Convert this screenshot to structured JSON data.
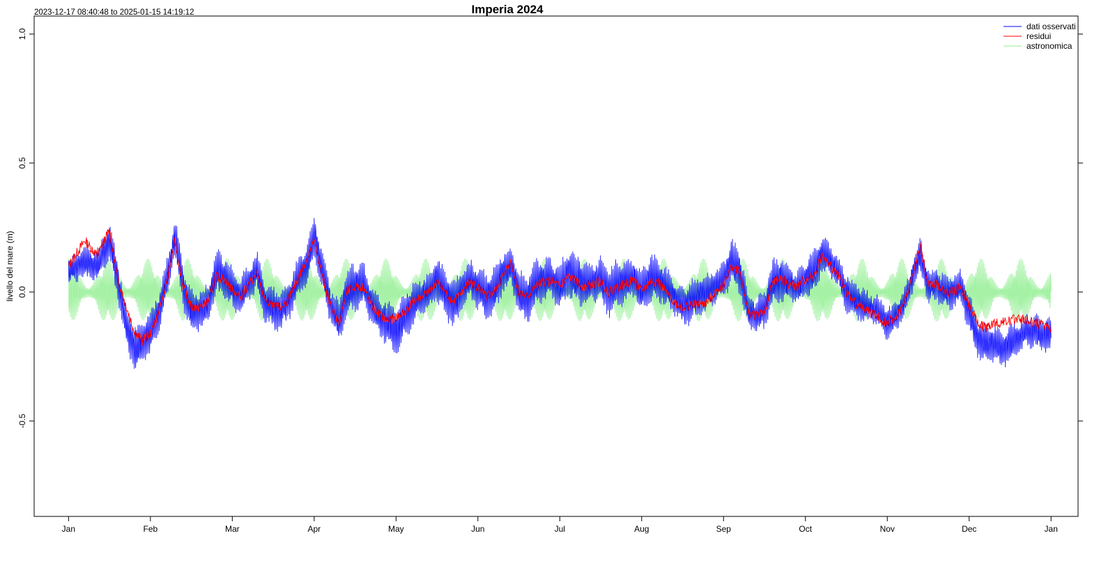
{
  "chart_data": {
    "type": "line",
    "title": "Imperia 2024",
    "subtitle": "2023-12-17 08:40:48 to 2025-01-15 14:19:12",
    "xlabel": "",
    "ylabel": "livello del mare (m)",
    "ylim": [
      -0.87,
      1.07
    ],
    "xlim": [
      -0.42,
      12.33
    ],
    "yticks": [
      -0.5,
      0.0,
      0.5,
      1.0
    ],
    "ytick_labels": [
      "-0.5",
      "0.0",
      "0.5",
      "1.0"
    ],
    "xticks": [
      0,
      1,
      2,
      3,
      4,
      5,
      6,
      7,
      8,
      9,
      10,
      11,
      12
    ],
    "xtick_labels": [
      "Jan",
      "Feb",
      "Mar",
      "Apr",
      "May",
      "Jun",
      "Jul",
      "Aug",
      "Sep",
      "Oct",
      "Nov",
      "Dec",
      "Jan"
    ],
    "x_unit": "months since 2024-01-01",
    "grid": false,
    "legend_position": "top-right",
    "series": [
      {
        "name": "dati osservati",
        "color": "#0000ff",
        "x": [
          0.0,
          0.2,
          0.35,
          0.5,
          0.6,
          0.7,
          0.8,
          0.9,
          1.0,
          1.1,
          1.2,
          1.3,
          1.4,
          1.5,
          1.6,
          1.7,
          1.8,
          1.9,
          2.0,
          2.1,
          2.2,
          2.3,
          2.4,
          2.5,
          2.6,
          2.7,
          2.8,
          2.9,
          3.0,
          3.1,
          3.2,
          3.3,
          3.4,
          3.5,
          3.6,
          3.7,
          3.8,
          3.9,
          4.0,
          4.1,
          4.2,
          4.3,
          4.4,
          4.5,
          4.6,
          4.7,
          4.8,
          4.9,
          5.0,
          5.1,
          5.2,
          5.3,
          5.4,
          5.5,
          5.6,
          5.7,
          5.8,
          5.9,
          6.0,
          6.1,
          6.2,
          6.3,
          6.4,
          6.5,
          6.6,
          6.7,
          6.8,
          6.9,
          7.0,
          7.1,
          7.2,
          7.3,
          7.4,
          7.5,
          7.6,
          7.7,
          7.8,
          7.9,
          8.0,
          8.1,
          8.2,
          8.3,
          8.4,
          8.5,
          8.6,
          8.7,
          8.8,
          8.9,
          9.0,
          9.1,
          9.2,
          9.3,
          9.4,
          9.5,
          9.6,
          9.7,
          9.8,
          9.9,
          10.0,
          10.1,
          10.2,
          10.3,
          10.4,
          10.5,
          10.6,
          10.7,
          10.8,
          10.9,
          11.0,
          11.1,
          11.2,
          11.3,
          11.4,
          11.5,
          11.6,
          11.7,
          11.8,
          11.9,
          12.0
        ],
        "y": [
          0.08,
          0.12,
          0.1,
          0.2,
          0.05,
          -0.12,
          -0.22,
          -0.2,
          -0.16,
          -0.08,
          0.05,
          0.22,
          0.02,
          -0.08,
          -0.07,
          -0.05,
          0.08,
          0.06,
          0.02,
          -0.02,
          0.04,
          0.08,
          -0.04,
          -0.06,
          -0.07,
          -0.03,
          0.05,
          0.1,
          0.22,
          0.08,
          -0.05,
          -0.12,
          0.0,
          0.02,
          0.03,
          -0.05,
          -0.1,
          -0.12,
          -0.15,
          -0.1,
          -0.05,
          -0.02,
          0.0,
          0.05,
          0.0,
          -0.05,
          0.0,
          0.05,
          0.02,
          -0.02,
          0.0,
          0.08,
          0.1,
          0.0,
          -0.03,
          0.03,
          0.05,
          0.05,
          0.02,
          0.08,
          0.05,
          0.03,
          0.04,
          0.05,
          0.0,
          0.03,
          0.04,
          0.06,
          0.0,
          0.05,
          0.05,
          0.02,
          -0.02,
          -0.05,
          -0.04,
          -0.02,
          0.0,
          0.02,
          0.05,
          0.12,
          0.08,
          -0.08,
          -0.09,
          -0.07,
          0.04,
          0.05,
          0.03,
          0.02,
          0.05,
          0.08,
          0.15,
          0.12,
          0.08,
          0.0,
          -0.03,
          -0.05,
          -0.06,
          -0.08,
          -0.12,
          -0.1,
          -0.05,
          0.05,
          0.15,
          0.02,
          0.03,
          0.0,
          0.0,
          0.02,
          -0.08,
          -0.18,
          -0.2,
          -0.2,
          -0.22,
          -0.2,
          -0.18,
          -0.15,
          -0.15,
          -0.17,
          -0.16
        ],
        "amplitude": [
          0.05,
          0.06,
          0.06,
          0.07,
          0.07,
          0.07,
          0.08,
          0.08,
          0.08,
          0.07,
          0.07,
          0.07,
          0.08,
          0.08,
          0.07,
          0.07,
          0.08,
          0.08,
          0.08,
          0.07,
          0.07,
          0.07,
          0.08,
          0.08,
          0.07,
          0.07,
          0.07,
          0.08,
          0.08,
          0.07,
          0.07,
          0.08,
          0.09,
          0.09,
          0.08,
          0.07,
          0.07,
          0.08,
          0.09,
          0.09,
          0.08,
          0.07,
          0.07,
          0.08,
          0.09,
          0.09,
          0.08,
          0.07,
          0.08,
          0.09,
          0.09,
          0.08,
          0.07,
          0.08,
          0.09,
          0.09,
          0.08,
          0.07,
          0.08,
          0.09,
          0.09,
          0.08,
          0.07,
          0.08,
          0.09,
          0.09,
          0.08,
          0.07,
          0.08,
          0.09,
          0.08,
          0.07,
          0.06,
          0.07,
          0.08,
          0.08,
          0.07,
          0.06,
          0.07,
          0.08,
          0.08,
          0.07,
          0.06,
          0.07,
          0.08,
          0.08,
          0.07,
          0.06,
          0.07,
          0.08,
          0.07,
          0.06,
          0.06,
          0.07,
          0.07,
          0.06,
          0.05,
          0.06,
          0.06,
          0.05,
          0.05,
          0.05,
          0.06,
          0.06,
          0.06,
          0.06,
          0.06,
          0.06,
          0.07,
          0.07,
          0.07,
          0.07,
          0.07,
          0.07,
          0.06,
          0.06,
          0.06,
          0.06,
          0.06
        ]
      },
      {
        "name": "residui",
        "color": "#ff0000",
        "x": [
          0.0,
          0.2,
          0.35,
          0.5,
          0.6,
          0.7,
          0.8,
          0.9,
          1.0,
          1.1,
          1.2,
          1.3,
          1.4,
          1.5,
          1.6,
          1.7,
          1.8,
          1.9,
          2.0,
          2.1,
          2.2,
          2.3,
          2.4,
          2.5,
          2.6,
          2.7,
          2.8,
          2.9,
          3.0,
          3.1,
          3.2,
          3.3,
          3.4,
          3.5,
          3.6,
          3.7,
          3.8,
          3.9,
          4.0,
          4.1,
          4.2,
          4.3,
          4.4,
          4.5,
          4.6,
          4.7,
          4.8,
          4.9,
          5.0,
          5.1,
          5.2,
          5.3,
          5.4,
          5.5,
          5.6,
          5.7,
          5.8,
          5.9,
          6.0,
          6.1,
          6.2,
          6.3,
          6.4,
          6.5,
          6.6,
          6.7,
          6.8,
          6.9,
          7.0,
          7.1,
          7.2,
          7.3,
          7.4,
          7.5,
          7.6,
          7.7,
          7.8,
          7.9,
          8.0,
          8.1,
          8.2,
          8.3,
          8.4,
          8.5,
          8.6,
          8.7,
          8.8,
          8.9,
          9.0,
          9.1,
          9.2,
          9.3,
          9.4,
          9.5,
          9.6,
          9.7,
          9.8,
          9.9,
          10.0,
          10.1,
          10.2,
          10.3,
          10.4,
          10.5,
          10.6,
          10.7,
          10.8,
          10.9,
          11.0,
          11.1,
          11.2,
          11.3,
          11.4,
          11.5,
          11.6,
          11.7,
          11.8,
          11.9,
          12.0
        ],
        "y": [
          0.1,
          0.2,
          0.14,
          0.24,
          0.05,
          -0.05,
          -0.15,
          -0.19,
          -0.16,
          -0.08,
          0.04,
          0.2,
          0.02,
          -0.06,
          -0.06,
          -0.04,
          0.06,
          0.05,
          0.01,
          -0.02,
          0.03,
          0.07,
          -0.03,
          -0.06,
          -0.06,
          -0.02,
          0.05,
          0.12,
          0.2,
          0.06,
          -0.05,
          -0.12,
          0.0,
          0.02,
          0.02,
          -0.05,
          -0.09,
          -0.11,
          -0.1,
          -0.08,
          -0.04,
          -0.02,
          0.0,
          0.04,
          0.0,
          -0.04,
          0.0,
          0.04,
          0.02,
          -0.02,
          0.0,
          0.06,
          0.12,
          0.0,
          -0.02,
          0.02,
          0.04,
          0.04,
          0.02,
          0.06,
          0.04,
          0.02,
          0.03,
          0.04,
          0.0,
          0.02,
          0.03,
          0.05,
          0.0,
          0.04,
          0.04,
          0.0,
          -0.04,
          -0.06,
          -0.05,
          -0.05,
          -0.04,
          0.0,
          0.03,
          0.1,
          0.08,
          -0.08,
          -0.09,
          -0.08,
          0.04,
          0.05,
          0.03,
          0.02,
          0.05,
          0.06,
          0.14,
          0.1,
          0.07,
          0.0,
          -0.04,
          -0.06,
          -0.08,
          -0.1,
          -0.12,
          -0.1,
          -0.05,
          0.05,
          0.18,
          0.03,
          0.03,
          0.0,
          0.0,
          0.02,
          -0.05,
          -0.12,
          -0.14,
          -0.12,
          -0.12,
          -0.11,
          -0.1,
          -0.11,
          -0.12,
          -0.13,
          -0.14
        ]
      },
      {
        "name": "astronomica",
        "color": "#90ee90",
        "amplitude_min": 0.02,
        "amplitude_max": 0.13,
        "spring_neap_period_days": 14.77
      }
    ]
  }
}
